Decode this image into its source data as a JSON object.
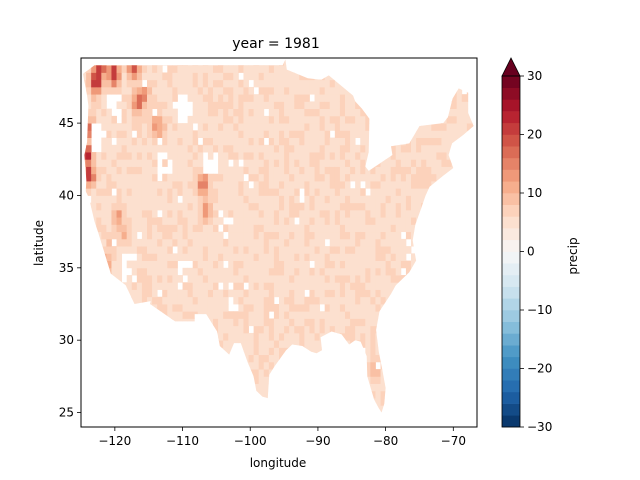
{
  "chart_data": {
    "type": "heatmap",
    "title": "year = 1981",
    "xlabel": "longitude",
    "ylabel": "latitude",
    "colorbar_label": "precip",
    "colormap": "RdBu_r",
    "colorbar_extend": "max",
    "xlim": [
      -125,
      -66.5
    ],
    "ylim": [
      24,
      49.5
    ],
    "x_ticks": [
      -120,
      -110,
      -100,
      -90,
      -80,
      -70
    ],
    "x_tick_labels": [
      "−120",
      "−110",
      "−100",
      "−90",
      "−80",
      "−70"
    ],
    "y_ticks": [
      25,
      30,
      35,
      40,
      45
    ],
    "y_tick_labels": [
      "25",
      "30",
      "35",
      "40",
      "45"
    ],
    "colorbar_range": [
      -30,
      30
    ],
    "colorbar_ticks": [
      -30,
      -20,
      -10,
      0,
      10,
      20,
      30
    ],
    "colorbar_tick_labels": [
      "−30",
      "−20",
      "−10",
      "0",
      "10",
      "20",
      "30"
    ],
    "grid": false,
    "region": "contiguous United States",
    "typical_value": 5,
    "hotspots": [
      {
        "lon": -124.2,
        "lat": 42.8,
        "value": 28
      },
      {
        "lon": -123.8,
        "lat": 41.5,
        "value": 24
      },
      {
        "lon": -123.5,
        "lat": 44.5,
        "value": 20
      },
      {
        "lon": -122.8,
        "lat": 47.8,
        "value": 26
      },
      {
        "lon": -122.3,
        "lat": 48.7,
        "value": 27
      },
      {
        "lon": -120.2,
        "lat": 48.4,
        "value": 24
      },
      {
        "lon": -117.2,
        "lat": 48.8,
        "value": 22
      },
      {
        "lon": -116.5,
        "lat": 46.5,
        "value": 20
      },
      {
        "lon": -115.8,
        "lat": 47.0,
        "value": 17
      },
      {
        "lon": -114.0,
        "lat": 45.0,
        "value": 15
      },
      {
        "lon": -113.5,
        "lat": 44.5,
        "value": 14
      },
      {
        "lon": -107.0,
        "lat": 40.8,
        "value": 18
      },
      {
        "lon": -106.5,
        "lat": 39.0,
        "value": 15
      },
      {
        "lon": -119.5,
        "lat": 38.5,
        "value": 13
      },
      {
        "lon": -118.7,
        "lat": 37.5,
        "value": 12
      },
      {
        "lon": -120.5,
        "lat": 36.5,
        "value": 10
      },
      {
        "lon": -121.5,
        "lat": 35.2,
        "value": 16
      },
      {
        "lon": -71.0,
        "lat": 47.0,
        "value": 12
      },
      {
        "lon": -97.0,
        "lat": 32.0,
        "value": 9
      },
      {
        "lon": -84.0,
        "lat": 33.5,
        "value": 8
      },
      {
        "lon": -87.5,
        "lat": 41.0,
        "value": 8
      },
      {
        "lon": -81.5,
        "lat": 28.0,
        "value": 11
      }
    ],
    "missing_areas": [
      {
        "lon": -122.3,
        "lat": 44.0
      },
      {
        "lon": -120.0,
        "lat": 46.0
      },
      {
        "lon": -118.0,
        "lat": 35.0
      },
      {
        "lon": -110.0,
        "lat": 46.0
      },
      {
        "lon": -106.0,
        "lat": 42.0
      },
      {
        "lon": -104.0,
        "lat": 38.0
      },
      {
        "lon": -109.5,
        "lat": 34.5
      },
      {
        "lon": -112.5,
        "lat": 42.0
      }
    ]
  }
}
